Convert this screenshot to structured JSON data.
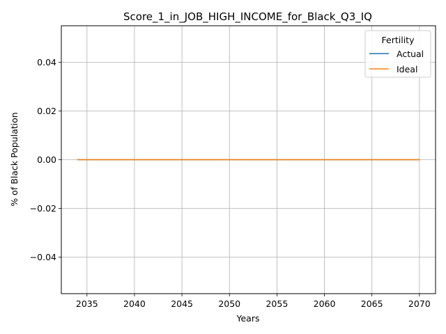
{
  "chart_data": {
    "type": "line",
    "title": "Score_1_in_JOB_HIGH_INCOME_for_Black_Q3_IQ",
    "xlabel": "Years",
    "ylabel": "% of Black Population",
    "xlim": [
      2032.3,
      2071.7
    ],
    "ylim": [
      -0.055,
      0.055
    ],
    "xticks": [
      2035,
      2040,
      2045,
      2050,
      2055,
      2060,
      2065,
      2070
    ],
    "xtick_labels": [
      "2035",
      "2040",
      "2045",
      "2050",
      "2055",
      "2060",
      "2065",
      "2070"
    ],
    "yticks": [
      -0.04,
      -0.02,
      0.0,
      0.02,
      0.04
    ],
    "ytick_labels": [
      "−0.04",
      "−0.02",
      "0.00",
      "0.02",
      "0.04"
    ],
    "grid": true,
    "legend": {
      "title": "Fertility",
      "placement": "top-right"
    },
    "series": [
      {
        "name": "Actual",
        "color": "#1f77b4",
        "x": [
          2034,
          2035,
          2036,
          2037,
          2038,
          2039,
          2040,
          2041,
          2042,
          2043,
          2044,
          2045,
          2046,
          2047,
          2048,
          2049,
          2050,
          2051,
          2052,
          2053,
          2054,
          2055,
          2056,
          2057,
          2058,
          2059,
          2060,
          2061,
          2062,
          2063,
          2064,
          2065,
          2066,
          2067,
          2068,
          2069,
          2070
        ],
        "y": [
          0,
          0,
          0,
          0,
          0,
          0,
          0,
          0,
          0,
          0,
          0,
          0,
          0,
          0,
          0,
          0,
          0,
          0,
          0,
          0,
          0,
          0,
          0,
          0,
          0,
          0,
          0,
          0,
          0,
          0,
          0,
          0,
          0,
          0,
          0,
          0,
          0
        ]
      },
      {
        "name": "Ideal",
        "color": "#ff7f0e",
        "x": [
          2034,
          2035,
          2036,
          2037,
          2038,
          2039,
          2040,
          2041,
          2042,
          2043,
          2044,
          2045,
          2046,
          2047,
          2048,
          2049,
          2050,
          2051,
          2052,
          2053,
          2054,
          2055,
          2056,
          2057,
          2058,
          2059,
          2060,
          2061,
          2062,
          2063,
          2064,
          2065,
          2066,
          2067,
          2068,
          2069,
          2070
        ],
        "y": [
          0,
          0,
          0,
          0,
          0,
          0,
          0,
          0,
          0,
          0,
          0,
          0,
          0,
          0,
          0,
          0,
          0,
          0,
          0,
          0,
          0,
          0,
          0,
          0,
          0,
          0,
          0,
          0,
          0,
          0,
          0,
          0,
          0,
          0,
          0,
          0,
          0
        ]
      }
    ]
  }
}
